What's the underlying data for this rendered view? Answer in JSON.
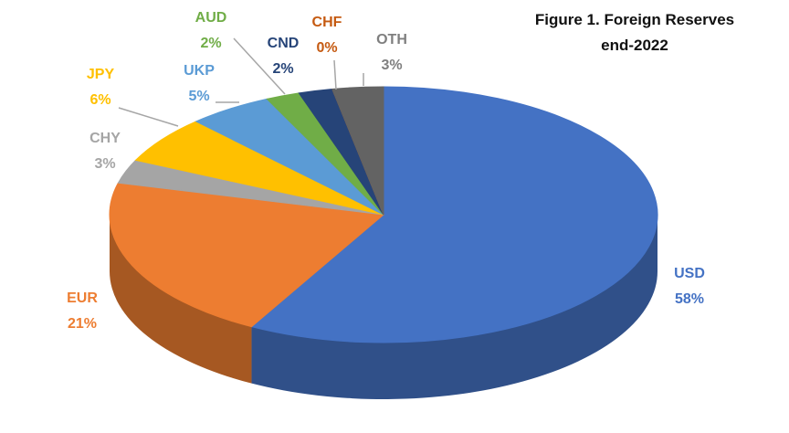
{
  "chart_data": {
    "type": "pie",
    "title": "Figure 1. Foreign Reserves end-2022",
    "categories": [
      "USD",
      "EUR",
      "CHY",
      "JPY",
      "UKP",
      "AUD",
      "CND",
      "CHF",
      "OTH"
    ],
    "values": [
      58,
      21,
      3,
      6,
      5,
      2,
      2,
      0,
      3
    ],
    "value_labels": [
      "58%",
      "21%",
      "3%",
      "6%",
      "5%",
      "2%",
      "2%",
      "0%",
      "3%"
    ],
    "colors": [
      "#4472c4",
      "#ed7d31",
      "#a5a5a5",
      "#ffc000",
      "#5b9bd5",
      "#70ad47",
      "#264478",
      "#c55a11",
      "#636363"
    ]
  }
}
